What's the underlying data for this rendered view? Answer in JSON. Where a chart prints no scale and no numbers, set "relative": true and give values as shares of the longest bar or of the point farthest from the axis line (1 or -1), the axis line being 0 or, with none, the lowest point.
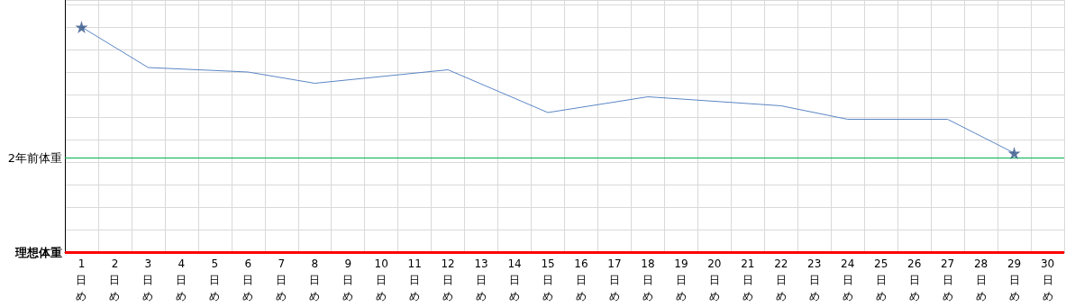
{
  "chart_data": {
    "type": "line",
    "relative": true,
    "categories": [
      "1日め",
      "2日め",
      "3日め",
      "4日め",
      "5日め",
      "6日め",
      "7日め",
      "8日め",
      "9日め",
      "10日め",
      "11日め",
      "12日め",
      "13日め",
      "14日め",
      "15日め",
      "16日め",
      "17日め",
      "18日め",
      "19日め",
      "20日め",
      "21日め",
      "22日め",
      "23日め",
      "24日め",
      "25日め",
      "26日め",
      "27日め",
      "28日め",
      "29日め",
      "30日め"
    ],
    "series": [
      {
        "color": "#5b86c5",
        "marker": "none",
        "values": [
          1,
          null,
          0.82,
          null,
          null,
          0.8,
          null,
          0.75,
          null,
          null,
          null,
          0.81,
          null,
          null,
          0.62,
          null,
          null,
          0.69,
          null,
          null,
          null,
          0.65,
          null,
          0.59,
          null,
          null,
          0.59,
          null,
          0.44,
          null
        ]
      },
      {
        "type": "scatter",
        "color": "#2f5386",
        "marker": "star",
        "values": [
          1,
          null,
          null,
          null,
          null,
          null,
          null,
          null,
          null,
          null,
          null,
          null,
          null,
          null,
          null,
          null,
          null,
          null,
          null,
          null,
          null,
          null,
          null,
          null,
          null,
          null,
          null,
          null,
          0.44,
          null
        ]
      }
    ],
    "ref_lines": [
      {
        "axis": "y",
        "value": 0.42,
        "label": "2年前体重",
        "color": "#00b050"
      },
      {
        "axis": "y",
        "value": 0,
        "label": "理想体重",
        "color": "#ff0000"
      }
    ],
    "grid": true
  }
}
